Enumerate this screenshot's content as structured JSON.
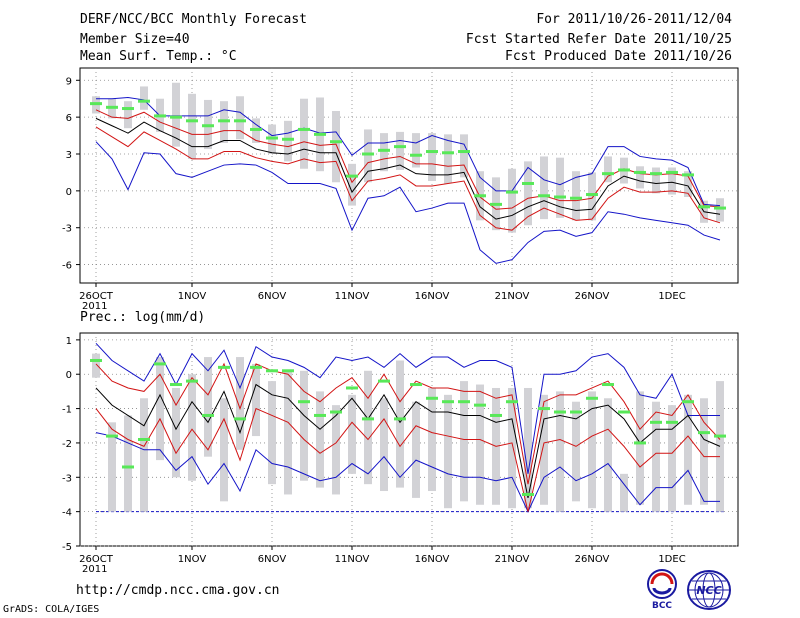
{
  "header": {
    "title": "DERF/NCC/BCC Monthly Forecast",
    "member_size": "Member Size=40",
    "variable": "Mean Surf. Temp.: °C",
    "period": "For 2011/10/26-2011/12/04",
    "fcst_started": "Fcst Started Refer Date 2011/10/25",
    "fcst_produced": "Fcst Produced Date 2011/10/26"
  },
  "footer": {
    "url": "http://cmdp.ncc.cma.gov.cn",
    "grads": "GrADS: COLA/IGES",
    "logo_left": "BCC",
    "logo_right": "NCC"
  },
  "colors": {
    "bar": "#d2d2d6",
    "median": "#58e858",
    "outer_line": "#1414c8",
    "inner_line": "#d21414",
    "mean_line": "#000000",
    "baseline": "#1414c8"
  },
  "chart_data": [
    {
      "type": "box-plume",
      "title": "Mean Surf. Temp.: °C",
      "ylabel": "°C",
      "ylim": [
        -7.5,
        10
      ],
      "yticks": [
        9,
        6,
        3,
        0,
        -3,
        -6
      ],
      "xticks": [
        {
          "day": 0,
          "label": "26OCT",
          "sub": "2011"
        },
        {
          "day": 6,
          "label": "1NOV",
          "sub": ""
        },
        {
          "day": 11,
          "label": "6NOV",
          "sub": ""
        },
        {
          "day": 16,
          "label": "11NOV",
          "sub": ""
        },
        {
          "day": 21,
          "label": "16NOV",
          "sub": ""
        },
        {
          "day": 26,
          "label": "21NOV",
          "sub": ""
        },
        {
          "day": 31,
          "label": "26NOV",
          "sub": ""
        },
        {
          "day": 36,
          "label": "1DEC",
          "sub": ""
        }
      ],
      "days": 40,
      "bar_low": [
        6.3,
        5.9,
        5.1,
        6.6,
        4.8,
        3.6,
        2.6,
        3.4,
        3.9,
        4.2,
        3.9,
        3.0,
        2.4,
        1.8,
        1.6,
        0.7,
        -1.2,
        0.7,
        1.6,
        1.7,
        1.9,
        0.8,
        0.6,
        1.1,
        -2.4,
        -3.2,
        -3.4,
        -2.8,
        -2.3,
        -2.2,
        -2.4,
        -2.4,
        0.7,
        0.6,
        0.2,
        -0.2,
        -0.3,
        -0.5,
        -2.6,
        -2.5
      ],
      "bar_high": [
        7.7,
        7.5,
        7.3,
        8.5,
        7.5,
        8.8,
        7.9,
        7.4,
        7.3,
        7.7,
        5.9,
        5.4,
        5.7,
        7.5,
        7.6,
        6.5,
        2.2,
        5.0,
        4.7,
        4.8,
        4.7,
        4.7,
        4.6,
        4.6,
        1.6,
        1.1,
        1.8,
        2.4,
        2.8,
        2.7,
        1.6,
        1.5,
        2.8,
        2.7,
        2.0,
        1.9,
        1.9,
        1.6,
        -0.8,
        -0.6
      ],
      "median": [
        7.1,
        6.8,
        6.7,
        7.3,
        6.1,
        6.0,
        5.7,
        5.3,
        5.7,
        5.7,
        5.0,
        4.3,
        4.2,
        5.0,
        4.6,
        4.0,
        1.2,
        3.0,
        3.3,
        3.6,
        2.9,
        3.2,
        3.1,
        3.2,
        -0.4,
        -1.1,
        -0.1,
        0.6,
        -0.4,
        -0.5,
        -0.6,
        -0.3,
        1.4,
        1.7,
        1.5,
        1.4,
        1.5,
        1.3,
        -1.3,
        -1.4
      ],
      "outer_max": [
        7.5,
        7.5,
        7.6,
        7.4,
        6.1,
        6.1,
        6.1,
        6.1,
        6.6,
        6.4,
        5.4,
        4.5,
        4.7,
        5.1,
        4.7,
        4.8,
        2.9,
        3.9,
        3.9,
        4.1,
        3.9,
        4.5,
        4.1,
        3.8,
        1.1,
        0.0,
        0.0,
        1.9,
        0.9,
        0.5,
        1.1,
        1.4,
        3.6,
        3.6,
        2.8,
        2.6,
        2.5,
        1.9,
        -1.1,
        -1.2
      ],
      "inner_max": [
        6.6,
        6.0,
        5.9,
        6.4,
        5.6,
        5.1,
        4.6,
        4.6,
        4.9,
        4.9,
        4.1,
        3.8,
        3.6,
        4.0,
        3.7,
        3.8,
        0.7,
        2.3,
        2.6,
        2.8,
        2.2,
        2.2,
        2.0,
        2.1,
        -0.5,
        -1.5,
        -1.4,
        -0.6,
        -0.4,
        -0.8,
        -0.8,
        -0.6,
        1.2,
        1.8,
        1.4,
        1.3,
        1.4,
        1.2,
        -1.2,
        -1.3
      ],
      "mean": [
        5.9,
        5.3,
        4.7,
        5.6,
        4.9,
        4.3,
        3.6,
        3.6,
        4.1,
        4.1,
        3.4,
        3.1,
        3.0,
        3.4,
        3.1,
        3.1,
        -0.1,
        1.6,
        1.8,
        2.1,
        1.4,
        1.3,
        1.3,
        1.5,
        -1.3,
        -2.3,
        -2.0,
        -1.3,
        -0.8,
        -1.3,
        -1.6,
        -1.5,
        0.4,
        1.2,
        0.8,
        0.6,
        0.7,
        0.4,
        -1.7,
        -1.9
      ],
      "inner_min": [
        5.2,
        4.4,
        3.6,
        4.8,
        4.1,
        3.4,
        2.6,
        2.6,
        3.2,
        3.2,
        2.7,
        2.4,
        2.2,
        2.6,
        2.3,
        2.4,
        -0.8,
        0.8,
        1.0,
        1.3,
        0.4,
        0.4,
        0.6,
        0.8,
        -2.0,
        -3.0,
        -3.2,
        -2.1,
        -1.4,
        -1.9,
        -2.4,
        -2.3,
        -0.6,
        0.3,
        -0.1,
        -0.1,
        0.0,
        -0.2,
        -2.2,
        -2.6
      ],
      "outer_min": [
        4.0,
        2.6,
        0.1,
        3.1,
        3.0,
        1.4,
        1.1,
        1.6,
        2.1,
        2.2,
        2.1,
        1.5,
        0.6,
        0.6,
        0.6,
        0.2,
        -3.2,
        -0.6,
        -0.4,
        0.3,
        -1.7,
        -1.4,
        -1.0,
        -1.0,
        -4.8,
        -5.9,
        -5.6,
        -4.2,
        -3.3,
        -3.2,
        -3.7,
        -3.4,
        -1.7,
        -1.9,
        -2.2,
        -2.4,
        -2.6,
        -2.8,
        -3.6,
        -4.0
      ]
    },
    {
      "type": "box-plume",
      "title": "Prec.: log(mm/d)",
      "ylabel": "log(mm/d)",
      "ylim": [
        -5,
        1.2
      ],
      "yticks": [
        1,
        0,
        -1,
        -2,
        -3,
        -4,
        -5
      ],
      "xticks": [
        {
          "day": 0,
          "label": "26OCT",
          "sub": "2011"
        },
        {
          "day": 6,
          "label": "1NOV",
          "sub": ""
        },
        {
          "day": 11,
          "label": "6NOV",
          "sub": ""
        },
        {
          "day": 16,
          "label": "11NOV",
          "sub": ""
        },
        {
          "day": 21,
          "label": "16NOV",
          "sub": ""
        },
        {
          "day": 26,
          "label": "21NOV",
          "sub": ""
        },
        {
          "day": 31,
          "label": "26NOV",
          "sub": ""
        },
        {
          "day": 36,
          "label": "1DEC",
          "sub": ""
        }
      ],
      "days": 40,
      "baseline": -4,
      "bar_low": [
        -0.1,
        -4.0,
        -4.0,
        -4.0,
        -2.5,
        -3.0,
        -3.1,
        -2.4,
        -3.7,
        -2.2,
        -1.8,
        -3.2,
        -3.5,
        -3.1,
        -3.3,
        -3.5,
        -2.9,
        -3.2,
        -3.4,
        -3.3,
        -3.6,
        -3.4,
        -3.9,
        -3.7,
        -3.8,
        -3.8,
        -3.9,
        -3.9,
        -3.8,
        -4.0,
        -3.7,
        -3.9,
        -4.0,
        -4.0,
        -3.8,
        -4.0,
        -4.0,
        -3.8,
        -3.8,
        -4.0
      ],
      "bar_high": [
        0.6,
        -1.4,
        -1.2,
        -0.7,
        0.5,
        -0.4,
        0.0,
        0.5,
        -0.7,
        0.5,
        0.3,
        -0.2,
        0.1,
        0.1,
        -0.5,
        -0.9,
        -0.6,
        0.1,
        -0.7,
        0.4,
        -0.8,
        -0.4,
        -0.6,
        -0.2,
        -0.3,
        -0.4,
        -0.4,
        -0.4,
        -0.6,
        -0.5,
        -0.8,
        -0.5,
        -0.7,
        -2.9,
        -0.5,
        -0.8,
        -0.9,
        -0.6,
        -0.7,
        -0.2
      ],
      "median": [
        0.4,
        -1.8,
        -2.7,
        -1.9,
        0.3,
        -0.3,
        -0.2,
        -1.2,
        0.2,
        -1.3,
        0.2,
        0.1,
        0.1,
        -0.8,
        -1.2,
        -1.1,
        -0.4,
        -1.3,
        -0.2,
        -1.3,
        -0.3,
        -0.7,
        -0.8,
        -0.8,
        -0.9,
        -1.2,
        -0.8,
        -3.5,
        -1.0,
        -1.1,
        -1.1,
        -0.7,
        -0.3,
        -1.1,
        -2.0,
        -1.4,
        -1.4,
        -0.8,
        -1.7,
        -1.8
      ],
      "outer_max": [
        0.9,
        0.4,
        0.1,
        -0.2,
        0.6,
        -0.3,
        0.6,
        0.1,
        0.7,
        -0.4,
        0.8,
        0.5,
        0.4,
        0.2,
        -0.1,
        0.5,
        0.4,
        0.5,
        0.2,
        0.6,
        0.2,
        0.5,
        0.5,
        0.2,
        0.4,
        0.4,
        0.2,
        -2.9,
        0.0,
        0.0,
        0.1,
        0.5,
        0.6,
        0.2,
        -0.6,
        -0.7,
        0.0,
        -1.2,
        -1.2,
        -1.2
      ],
      "inner_max": [
        0.3,
        -0.2,
        -0.4,
        -0.5,
        0.0,
        -0.9,
        -0.1,
        -0.6,
        0.3,
        -1.0,
        0.3,
        0.1,
        0.0,
        -0.5,
        -0.8,
        -0.4,
        -0.1,
        -0.7,
        0.0,
        -0.8,
        -0.2,
        -0.4,
        -0.4,
        -0.5,
        -0.5,
        -0.7,
        -0.6,
        -3.2,
        -0.8,
        -0.6,
        -0.6,
        -0.4,
        -0.2,
        -0.8,
        -1.6,
        -1.1,
        -1.2,
        -0.6,
        -1.4,
        -1.9
      ],
      "mean": [
        -0.4,
        -0.9,
        -1.2,
        -1.5,
        -0.6,
        -1.6,
        -0.8,
        -1.4,
        -0.5,
        -1.7,
        -0.3,
        -0.6,
        -0.7,
        -1.2,
        -1.6,
        -1.2,
        -0.7,
        -1.3,
        -0.6,
        -1.4,
        -0.8,
        -1.1,
        -1.1,
        -1.2,
        -1.2,
        -1.4,
        -1.3,
        -3.6,
        -1.3,
        -1.2,
        -1.3,
        -1.0,
        -0.9,
        -1.3,
        -2.0,
        -1.6,
        -1.6,
        -1.2,
        -1.9,
        -2.1
      ],
      "inner_min": [
        -1.0,
        -1.6,
        -1.9,
        -2.1,
        -1.3,
        -2.3,
        -1.6,
        -2.2,
        -1.3,
        -2.5,
        -1.0,
        -1.2,
        -1.4,
        -1.9,
        -2.3,
        -2.0,
        -1.4,
        -1.9,
        -1.3,
        -2.1,
        -1.5,
        -1.7,
        -1.8,
        -1.9,
        -1.9,
        -2.1,
        -2.0,
        -4.0,
        -2.0,
        -1.9,
        -2.1,
        -1.8,
        -1.6,
        -2.1,
        -2.7,
        -2.3,
        -2.3,
        -1.8,
        -2.4,
        -2.4
      ],
      "outer_min": [
        -1.7,
        -1.8,
        -2.0,
        -2.2,
        -2.2,
        -2.8,
        -2.4,
        -3.2,
        -2.6,
        -3.4,
        -2.2,
        -2.6,
        -2.7,
        -2.9,
        -3.1,
        -3.0,
        -2.6,
        -2.9,
        -2.4,
        -3.0,
        -2.5,
        -2.7,
        -2.9,
        -3.0,
        -3.0,
        -3.1,
        -3.0,
        -4.0,
        -3.0,
        -2.7,
        -3.1,
        -2.9,
        -2.6,
        -3.2,
        -3.8,
        -3.3,
        -3.3,
        -2.8,
        -3.7,
        -3.7
      ]
    }
  ]
}
